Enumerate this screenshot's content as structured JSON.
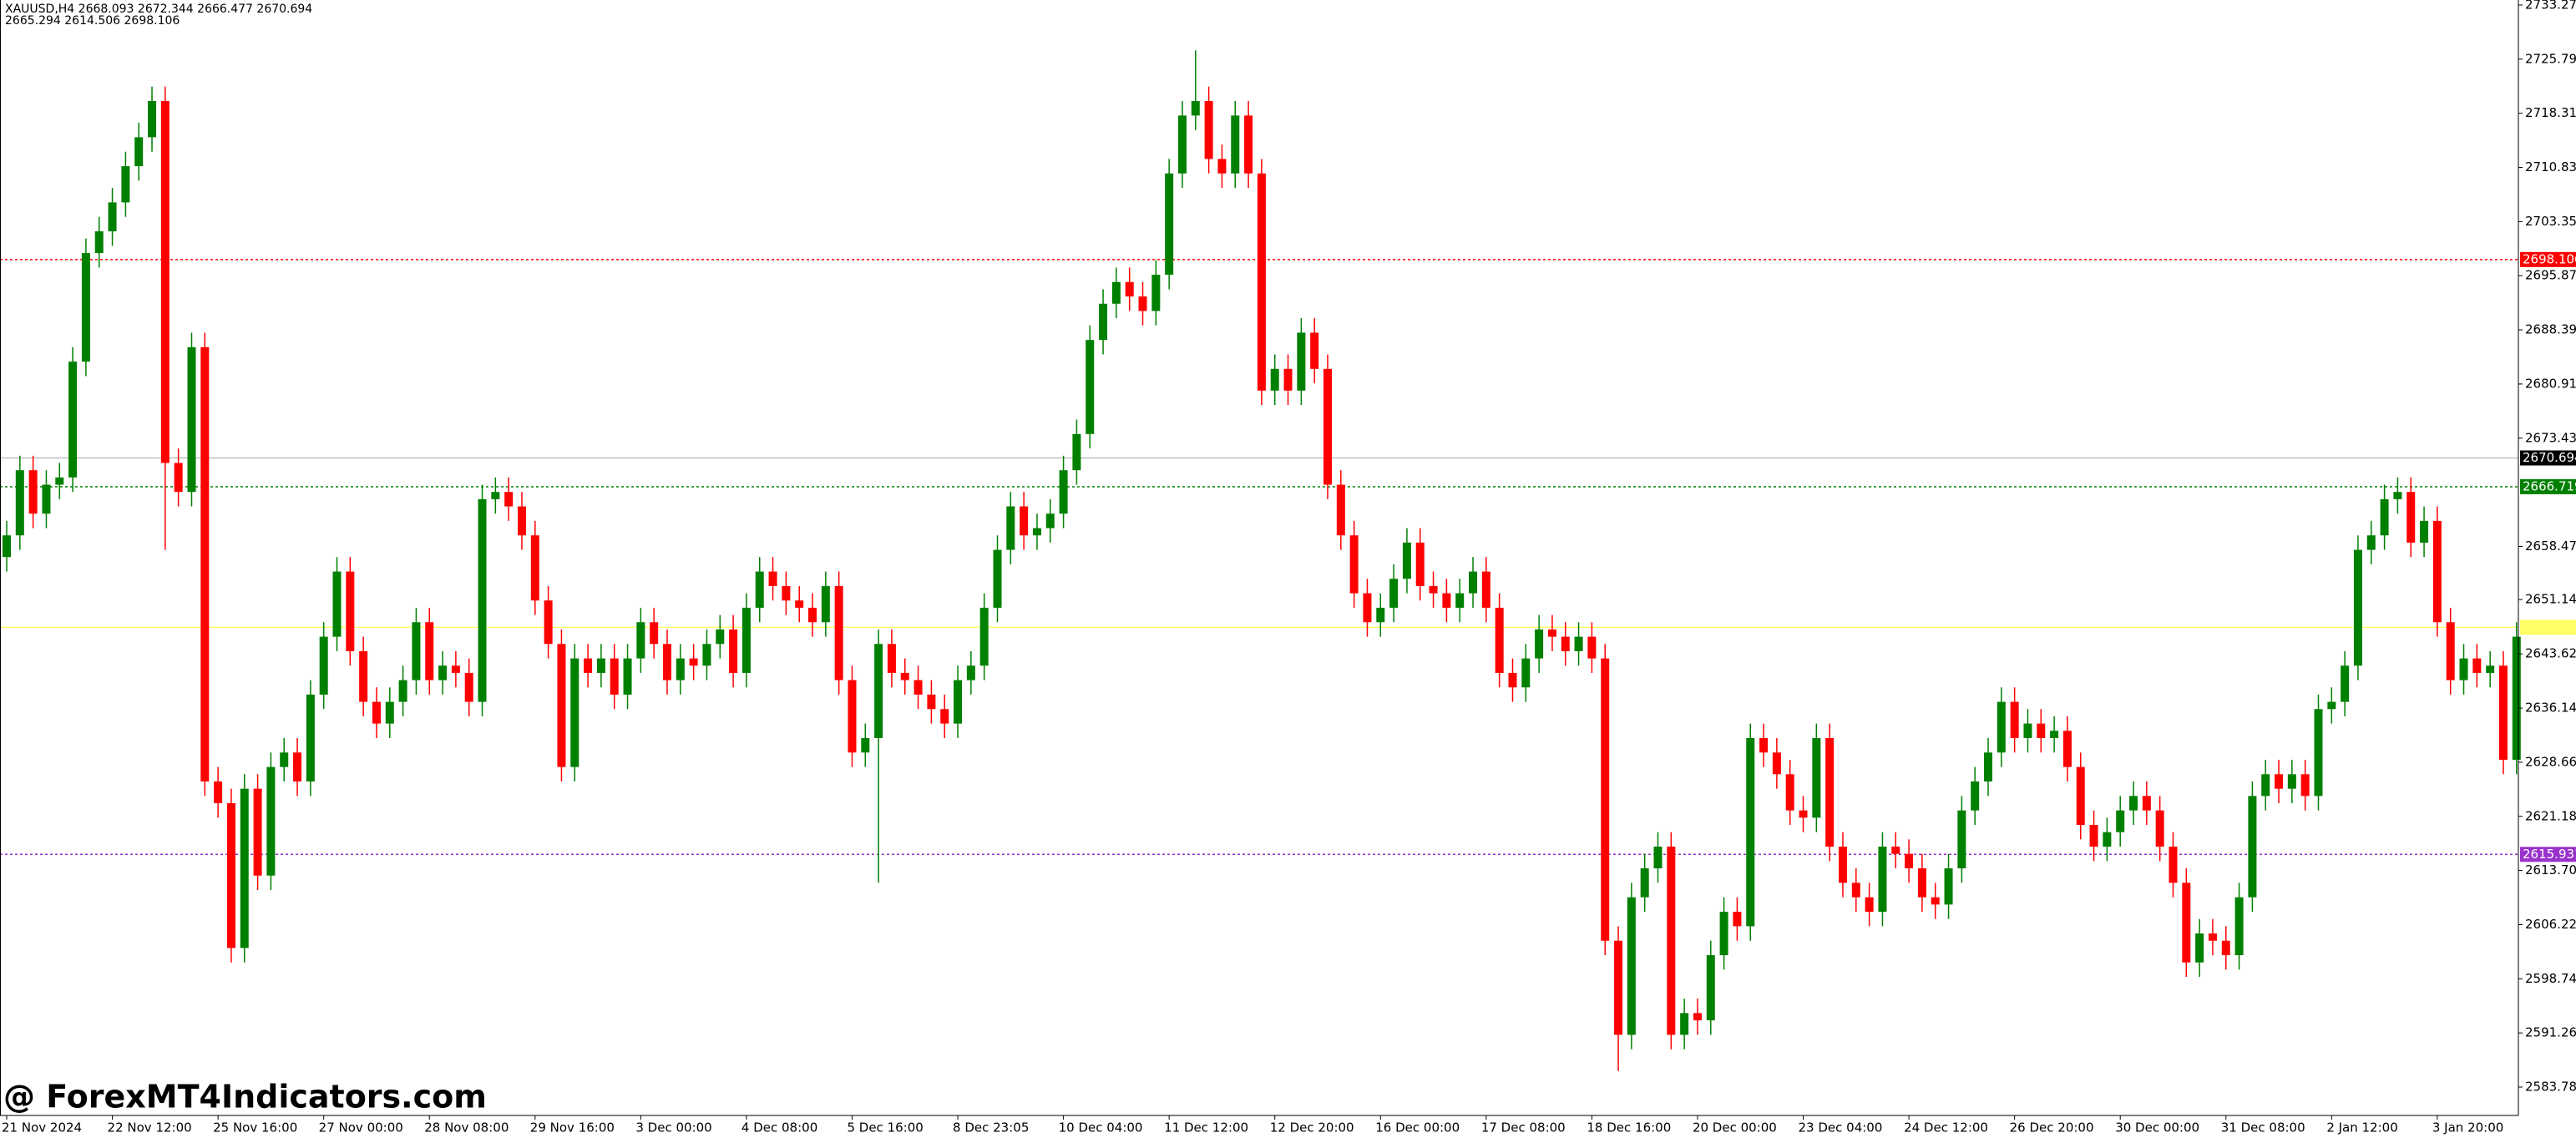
{
  "chart_data": {
    "type": "candlestick",
    "info": [
      "XAUUSD,H4  2668.093 2672.344 2666.477 2670.694",
      "2665.294 2614.506 2698.106"
    ],
    "watermark": "@ ForexMT4Indicators.com",
    "up_color": "#008000",
    "down_color": "#ff0000",
    "ylim": [
      2579.86,
      2733.96
    ],
    "yticks": [
      {
        "value": 2733.27,
        "label": "2733.270"
      },
      {
        "value": 2725.79,
        "label": "2725.790"
      },
      {
        "value": 2718.31,
        "label": "2718.310"
      },
      {
        "value": 2710.83,
        "label": "2710.830"
      },
      {
        "value": 2703.35,
        "label": "2703.350"
      },
      {
        "value": 2695.87,
        "label": "2695.870"
      },
      {
        "value": 2688.39,
        "label": "2688.390"
      },
      {
        "value": 2680.91,
        "label": "2680.910"
      },
      {
        "value": 2673.43,
        "label": "2673.430"
      },
      {
        "value": 2658.47,
        "label": "2658.470"
      },
      {
        "value": 2651.14,
        "label": "2651.140"
      },
      {
        "value": 2643.62,
        "label": "2643.620"
      },
      {
        "value": 2636.14,
        "label": "2636.140"
      },
      {
        "value": 2628.66,
        "label": "2628.660"
      },
      {
        "value": 2621.18,
        "label": "2621.180"
      },
      {
        "value": 2613.7,
        "label": "2613.700"
      },
      {
        "value": 2606.22,
        "label": "2606.220"
      },
      {
        "value": 2598.74,
        "label": "2598.740"
      },
      {
        "value": 2591.26,
        "label": "2591.260"
      },
      {
        "value": 2583.78,
        "label": "2583.780"
      }
    ],
    "levels": [
      {
        "value": 2698.106,
        "label": "2698.106",
        "color": "#ff0000",
        "dash": true
      },
      {
        "value": 2670.694,
        "label": "2670.694",
        "color": "#000000",
        "line_color": "#c0c0c0",
        "dash": false
      },
      {
        "value": 2666.719,
        "label": "2666.719",
        "color": "#008000",
        "dash": true
      },
      {
        "value": 2647.3,
        "color": "#ffff66",
        "dash": false
      },
      {
        "value": 2615.931,
        "label": "2615.931",
        "color": "#9932cc",
        "dash": true
      }
    ],
    "categories": [
      "21 Nov 2024",
      null,
      null,
      null,
      null,
      null,
      null,
      null,
      "22 Nov 12:00",
      null,
      null,
      null,
      null,
      null,
      null,
      null,
      "25 Nov 16:00",
      null,
      null,
      null,
      null,
      null,
      null,
      null,
      "27 Nov 00:00",
      null,
      null,
      null,
      null,
      null,
      null,
      null,
      "28 Nov 08:00",
      null,
      null,
      null,
      null,
      null,
      null,
      null,
      "29 Nov 16:00",
      null,
      null,
      null,
      null,
      null,
      null,
      null,
      "3 Dec 00:00",
      null,
      null,
      null,
      null,
      null,
      null,
      null,
      "4 Dec 08:00",
      null,
      null,
      null,
      null,
      null,
      null,
      null,
      "5 Dec 16:00",
      null,
      null,
      null,
      null,
      null,
      null,
      null,
      "8 Dec 23:05",
      null,
      null,
      null,
      null,
      null,
      null,
      null,
      "10 Dec 04:00",
      null,
      null,
      null,
      null,
      null,
      null,
      null,
      "11 Dec 12:00",
      null,
      null,
      null,
      null,
      null,
      null,
      null,
      "12 Dec 20:00",
      null,
      null,
      null,
      null,
      null,
      null,
      null,
      "16 Dec 00:00",
      null,
      null,
      null,
      null,
      null,
      null,
      null,
      "17 Dec 08:00",
      null,
      null,
      null,
      null,
      null,
      null,
      null,
      "18 Dec 16:00",
      null,
      null,
      null,
      null,
      null,
      null,
      null,
      "20 Dec 00:00",
      null,
      null,
      null,
      null,
      null,
      null,
      null,
      "23 Dec 04:00",
      null,
      null,
      null,
      null,
      null,
      null,
      null,
      "24 Dec 12:00",
      null,
      null,
      null,
      null,
      null,
      null,
      null,
      "26 Dec 20:00",
      null,
      null,
      null,
      null,
      null,
      null,
      null,
      "30 Dec 00:00",
      null,
      null,
      null,
      null,
      null,
      null,
      null,
      "31 Dec 08:00",
      null,
      null,
      null,
      null,
      null,
      null,
      null,
      "2 Jan 12:00",
      null,
      null,
      null,
      null,
      null,
      null,
      null,
      "3 Jan 20:00",
      null,
      null,
      null,
      null,
      null,
      null
    ],
    "open": [
      2657,
      2660,
      2669,
      2663,
      2667,
      2668,
      2684,
      2699,
      2702,
      2706,
      2711,
      2715,
      2720,
      2670,
      2666,
      2686,
      2626,
      2623,
      2603,
      2625,
      2613,
      2628,
      2630,
      2626,
      2638,
      2646,
      2655,
      2644,
      2637,
      2634,
      2637,
      2640,
      2648,
      2640,
      2642,
      2641,
      2637,
      2665,
      2666,
      2664,
      2660,
      2651,
      2645,
      2628,
      2643,
      2641,
      2643,
      2638,
      2643,
      2648,
      2645,
      2640,
      2643,
      2642,
      2645,
      2647,
      2641,
      2650,
      2655,
      2653,
      2651,
      2650,
      2648,
      2653,
      2640,
      2630,
      2632,
      2645,
      2641,
      2640,
      2638,
      2636,
      2634,
      2640,
      2642,
      2650,
      2658,
      2664,
      2660,
      2661,
      2663,
      2669,
      2674,
      2687,
      2692,
      2695,
      2693,
      2691,
      2696,
      2710,
      2718,
      2720,
      2712,
      2710,
      2718,
      2710,
      2680,
      2683,
      2680,
      2688,
      2683,
      2667,
      2660,
      2652,
      2648,
      2650,
      2654,
      2659,
      2653,
      2652,
      2650,
      2652,
      2655,
      2650,
      2641,
      2639,
      2643,
      2647,
      2646,
      2644,
      2646,
      2643,
      2604,
      2591,
      2610,
      2614,
      2617,
      2591,
      2594,
      2593,
      2602,
      2608,
      2606,
      2632,
      2630,
      2627,
      2622,
      2621,
      2632,
      2617,
      2612,
      2610,
      2608,
      2617,
      2616,
      2614,
      2610,
      2609,
      2614,
      2622,
      2626,
      2630,
      2637,
      2632,
      2634,
      2632,
      2633,
      2628,
      2620,
      2617,
      2619,
      2622,
      2624,
      2622,
      2617,
      2612,
      2601,
      2605,
      2604,
      2602,
      2610,
      2624,
      2627,
      2625,
      2627,
      2624,
      2636,
      2637,
      2642,
      2658,
      2660,
      2665,
      2666,
      2659,
      2662,
      2648,
      2640,
      2643,
      2641,
      2642,
      2629
    ],
    "high": [
      2662,
      2671,
      2671,
      2669,
      2670,
      2686,
      2701,
      2704,
      2708,
      2713,
      2717,
      2722,
      2722,
      2672,
      2688,
      2688,
      2628,
      2625,
      2627,
      2627,
      2630,
      2632,
      2632,
      2640,
      2648,
      2657,
      2657,
      2646,
      2639,
      2639,
      2642,
      2650,
      2650,
      2644,
      2644,
      2643,
      2667,
      2668,
      2668,
      2666,
      2662,
      2653,
      2647,
      2645,
      2645,
      2645,
      2645,
      2645,
      2650,
      2650,
      2647,
      2645,
      2645,
      2647,
      2649,
      2649,
      2652,
      2657,
      2657,
      2655,
      2653,
      2652,
      2655,
      2655,
      2642,
      2634,
      2647,
      2647,
      2643,
      2642,
      2640,
      2638,
      2642,
      2644,
      2652,
      2660,
      2666,
      2666,
      2663,
      2665,
      2671,
      2676,
      2689,
      2694,
      2697,
      2697,
      2695,
      2698,
      2712,
      2720,
      2727,
      2722,
      2714,
      2720,
      2720,
      2712,
      2685,
      2685,
      2690,
      2690,
      2685,
      2669,
      2662,
      2654,
      2652,
      2656,
      2661,
      2661,
      2655,
      2654,
      2654,
      2657,
      2657,
      2652,
      2643,
      2645,
      2649,
      2649,
      2648,
      2648,
      2648,
      2645,
      2606,
      2612,
      2616,
      2619,
      2619,
      2596,
      2596,
      2604,
      2610,
      2610,
      2634,
      2634,
      2632,
      2629,
      2624,
      2634,
      2634,
      2619,
      2614,
      2612,
      2619,
      2619,
      2618,
      2616,
      2612,
      2616,
      2624,
      2628,
      2632,
      2639,
      2639,
      2636,
      2636,
      2635,
      2635,
      2630,
      2622,
      2621,
      2624,
      2626,
      2626,
      2624,
      2619,
      2614,
      2607,
      2607,
      2606,
      2612,
      2626,
      2629,
      2629,
      2629,
      2629,
      2638,
      2639,
      2644,
      2660,
      2662,
      2667,
      2668,
      2668,
      2664,
      2664,
      2650,
      2645,
      2645,
      2644,
      2644,
      2648
    ],
    "low": [
      2655,
      2658,
      2661,
      2661,
      2665,
      2666,
      2682,
      2697,
      2700,
      2704,
      2709,
      2713,
      2658,
      2664,
      2664,
      2624,
      2621,
      2601,
      2601,
      2611,
      2611,
      2626,
      2624,
      2624,
      2636,
      2644,
      2642,
      2635,
      2632,
      2632,
      2635,
      2638,
      2638,
      2638,
      2639,
      2635,
      2635,
      2663,
      2662,
      2658,
      2649,
      2643,
      2626,
      2626,
      2639,
      2639,
      2636,
      2636,
      2641,
      2643,
      2638,
      2638,
      2640,
      2640,
      2643,
      2639,
      2639,
      2648,
      2651,
      2649,
      2648,
      2646,
      2646,
      2638,
      2628,
      2628,
      2612,
      2639,
      2638,
      2636,
      2634,
      2632,
      2632,
      2638,
      2640,
      2648,
      2656,
      2658,
      2658,
      2659,
      2661,
      2667,
      2672,
      2685,
      2690,
      2691,
      2689,
      2689,
      2694,
      2708,
      2716,
      2710,
      2708,
      2708,
      2708,
      2678,
      2678,
      2678,
      2678,
      2681,
      2665,
      2658,
      2650,
      2646,
      2646,
      2648,
      2652,
      2651,
      2650,
      2648,
      2648,
      2650,
      2648,
      2639,
      2637,
      2637,
      2641,
      2644,
      2642,
      2642,
      2641,
      2602,
      2586,
      2589,
      2608,
      2612,
      2589,
      2589,
      2591,
      2591,
      2600,
      2604,
      2604,
      2628,
      2625,
      2620,
      2619,
      2619,
      2615,
      2610,
      2608,
      2606,
      2606,
      2614,
      2612,
      2608,
      2607,
      2607,
      2612,
      2620,
      2624,
      2628,
      2630,
      2630,
      2630,
      2630,
      2626,
      2618,
      2615,
      2615,
      2617,
      2620,
      2620,
      2615,
      2610,
      2599,
      2599,
      2602,
      2600,
      2600,
      2608,
      2622,
      2623,
      2623,
      2622,
      2622,
      2634,
      2635,
      2640,
      2656,
      2658,
      2663,
      2657,
      2657,
      2646,
      2638,
      2638,
      2639,
      2639,
      2627,
      2627
    ],
    "close": [
      2660,
      2669,
      2663,
      2667,
      2668,
      2684,
      2699,
      2702,
      2706,
      2711,
      2715,
      2720,
      2670,
      2666,
      2686,
      2626,
      2623,
      2603,
      2625,
      2613,
      2628,
      2630,
      2626,
      2638,
      2646,
      2655,
      2644,
      2637,
      2634,
      2637,
      2640,
      2648,
      2640,
      2642,
      2641,
      2637,
      2665,
      2666,
      2664,
      2660,
      2651,
      2645,
      2628,
      2643,
      2641,
      2643,
      2638,
      2643,
      2648,
      2645,
      2640,
      2643,
      2642,
      2645,
      2647,
      2641,
      2650,
      2655,
      2653,
      2651,
      2650,
      2648,
      2653,
      2640,
      2630,
      2632,
      2645,
      2641,
      2640,
      2638,
      2636,
      2634,
      2640,
      2642,
      2650,
      2658,
      2664,
      2660,
      2661,
      2663,
      2669,
      2674,
      2687,
      2692,
      2695,
      2693,
      2691,
      2696,
      2710,
      2718,
      2720,
      2712,
      2710,
      2718,
      2710,
      2680,
      2683,
      2680,
      2688,
      2683,
      2667,
      2660,
      2652,
      2648,
      2650,
      2654,
      2659,
      2653,
      2652,
      2650,
      2652,
      2655,
      2650,
      2641,
      2639,
      2643,
      2647,
      2646,
      2644,
      2646,
      2643,
      2604,
      2591,
      2610,
      2614,
      2617,
      2591,
      2594,
      2593,
      2602,
      2608,
      2606,
      2632,
      2630,
      2627,
      2622,
      2621,
      2632,
      2617,
      2612,
      2610,
      2608,
      2617,
      2616,
      2614,
      2610,
      2609,
      2614,
      2622,
      2626,
      2630,
      2637,
      2632,
      2634,
      2632,
      2633,
      2628,
      2620,
      2617,
      2619,
      2622,
      2624,
      2622,
      2617,
      2612,
      2601,
      2605,
      2604,
      2602,
      2610,
      2624,
      2627,
      2625,
      2627,
      2624,
      2636,
      2637,
      2642,
      2658,
      2660,
      2665,
      2666,
      2659,
      2662,
      2648,
      2640,
      2643,
      2641,
      2642,
      2629,
      2646
    ]
  }
}
